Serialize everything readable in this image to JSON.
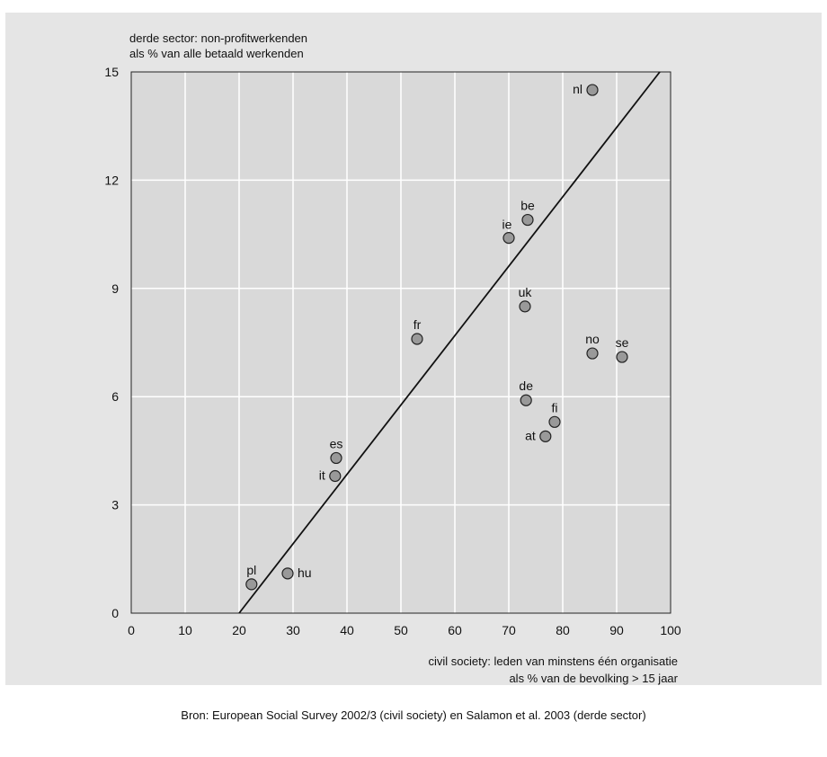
{
  "chart_data": {
    "type": "scatter",
    "title": "",
    "ylabel_lines": [
      "derde sector: non-profitwerkenden",
      "als % van alle betaald werkenden"
    ],
    "xlabel_lines": [
      "civil society: leden van minstens één organisatie",
      "als % van de bevolking > 15 jaar"
    ],
    "source": "Bron: European Social Survey 2002/3 (civil society) en Salamon et al. 2003 (derde sector)",
    "xlim": [
      0,
      100
    ],
    "ylim": [
      0,
      15
    ],
    "x_ticks": [
      "0",
      "10",
      "20",
      "30",
      "40",
      "50",
      "60",
      "70",
      "80",
      "90",
      "100"
    ],
    "y_ticks": [
      "0",
      "3",
      "6",
      "9",
      "12",
      "15"
    ],
    "grid": true,
    "trendline": {
      "x": [
        20,
        98
      ],
      "y": [
        0,
        15
      ]
    },
    "point_color": "#999999",
    "points": [
      {
        "label": "nl",
        "x": 85.5,
        "y": 14.5,
        "label_pos": "left"
      },
      {
        "label": "be",
        "x": 73.5,
        "y": 10.9,
        "label_pos": "top"
      },
      {
        "label": "ie",
        "x": 70,
        "y": 10.4,
        "label_pos": "topleft"
      },
      {
        "label": "uk",
        "x": 73,
        "y": 8.5,
        "label_pos": "top"
      },
      {
        "label": "fr",
        "x": 53,
        "y": 7.6,
        "label_pos": "top"
      },
      {
        "label": "no",
        "x": 85.5,
        "y": 7.2,
        "label_pos": "top"
      },
      {
        "label": "se",
        "x": 91,
        "y": 7.1,
        "label_pos": "top"
      },
      {
        "label": "de",
        "x": 73.2,
        "y": 5.9,
        "label_pos": "top"
      },
      {
        "label": "fi",
        "x": 78.5,
        "y": 5.3,
        "label_pos": "top"
      },
      {
        "label": "at",
        "x": 76.8,
        "y": 4.9,
        "label_pos": "left"
      },
      {
        "label": "es",
        "x": 38,
        "y": 4.3,
        "label_pos": "top"
      },
      {
        "label": "it",
        "x": 37.8,
        "y": 3.8,
        "label_pos": "left"
      },
      {
        "label": "pl",
        "x": 22.3,
        "y": 0.8,
        "label_pos": "top"
      },
      {
        "label": "hu",
        "x": 29,
        "y": 1.1,
        "label_pos": "right"
      }
    ]
  }
}
